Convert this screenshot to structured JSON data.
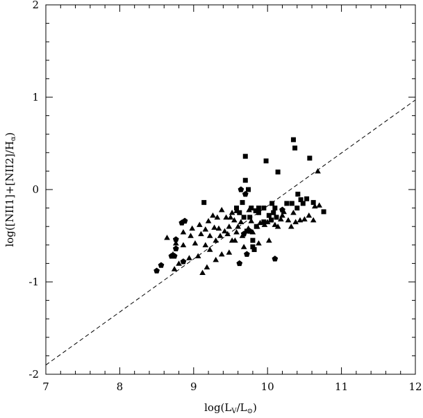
{
  "chart_data": {
    "type": "scatter",
    "title": "",
    "xlabel_main": "log(L",
    "xlabel_sub1": "V",
    "xlabel_mid": "/L",
    "xlabel_sub2": "⊙",
    "xlabel_end": ")",
    "ylabel_main": "log([NII1]+[NII2]/H",
    "ylabel_sub": "α",
    "ylabel_end": ")",
    "xlim": [
      7,
      12
    ],
    "ylim": [
      -2,
      2
    ],
    "x_ticks_major": [
      7,
      8,
      9,
      10,
      11,
      12
    ],
    "x_ticks_minor_step": 0.2,
    "y_ticks_major": [
      -2,
      -1,
      0,
      1,
      2
    ],
    "y_ticks_minor_step": 0.2,
    "x_tick_labels": [
      "7",
      "8",
      "9",
      "10",
      "11",
      "12"
    ],
    "y_tick_labels": [
      "-2",
      "-1",
      "0",
      "1",
      "2"
    ],
    "grid": false,
    "line": {
      "style": "dashed",
      "points": [
        [
          7,
          -1.9
        ],
        [
          12,
          0.97
        ]
      ]
    },
    "series": [
      {
        "marker": "square",
        "points": [
          [
            10.35,
            0.54
          ],
          [
            10.37,
            0.45
          ],
          [
            9.7,
            0.36
          ],
          [
            9.98,
            0.31
          ],
          [
            10.57,
            0.34
          ],
          [
            10.14,
            0.19
          ],
          [
            9.7,
            0.1
          ],
          [
            9.74,
            0.0
          ],
          [
            10.41,
            -0.05
          ],
          [
            9.14,
            -0.14
          ],
          [
            9.66,
            -0.14
          ],
          [
            10.45,
            -0.11
          ],
          [
            10.53,
            -0.1
          ],
          [
            10.33,
            -0.15
          ],
          [
            10.4,
            -0.2
          ],
          [
            10.48,
            -0.15
          ],
          [
            10.26,
            -0.15
          ],
          [
            10.62,
            -0.14
          ],
          [
            9.58,
            -0.2
          ],
          [
            9.78,
            -0.2
          ],
          [
            9.88,
            -0.2
          ],
          [
            9.95,
            -0.2
          ],
          [
            10.06,
            -0.15
          ],
          [
            10.1,
            -0.2
          ],
          [
            9.62,
            -0.25
          ],
          [
            9.84,
            -0.23
          ],
          [
            10.02,
            -0.28
          ],
          [
            10.05,
            -0.33
          ],
          [
            9.68,
            -0.3
          ],
          [
            9.76,
            -0.3
          ],
          [
            10.76,
            -0.24
          ],
          [
            9.85,
            -0.4
          ],
          [
            9.95,
            -0.35
          ],
          [
            10.12,
            -0.3
          ],
          [
            9.8,
            -0.55
          ],
          [
            9.8,
            -0.62
          ],
          [
            9.82,
            -0.65
          ],
          [
            9.72,
            -0.45
          ],
          [
            9.88,
            -0.25
          ],
          [
            10.08,
            -0.25
          ]
        ]
      },
      {
        "marker": "triangle",
        "points": [
          [
            10.68,
            0.2
          ],
          [
            9.38,
            -0.22
          ],
          [
            9.52,
            -0.25
          ],
          [
            9.58,
            -0.23
          ],
          [
            9.75,
            -0.22
          ],
          [
            10.2,
            -0.28
          ],
          [
            10.22,
            -0.24
          ],
          [
            10.35,
            -0.25
          ],
          [
            9.26,
            -0.28
          ],
          [
            9.32,
            -0.3
          ],
          [
            9.44,
            -0.3
          ],
          [
            9.5,
            -0.3
          ],
          [
            9.55,
            -0.33
          ],
          [
            9.2,
            -0.34
          ],
          [
            9.64,
            -0.35
          ],
          [
            9.78,
            -0.34
          ],
          [
            9.9,
            -0.36
          ],
          [
            10.0,
            -0.35
          ],
          [
            10.18,
            -0.32
          ],
          [
            10.28,
            -0.33
          ],
          [
            10.38,
            -0.35
          ],
          [
            10.44,
            -0.33
          ],
          [
            10.5,
            -0.32
          ],
          [
            10.56,
            -0.28
          ],
          [
            10.64,
            -0.18
          ],
          [
            10.7,
            -0.17
          ],
          [
            10.14,
            -0.4
          ],
          [
            10.32,
            -0.4
          ],
          [
            10.62,
            -0.33
          ],
          [
            9.08,
            -0.38
          ],
          [
            8.98,
            -0.42
          ],
          [
            9.16,
            -0.43
          ],
          [
            9.28,
            -0.41
          ],
          [
            9.34,
            -0.42
          ],
          [
            9.48,
            -0.4
          ],
          [
            9.6,
            -0.4
          ],
          [
            9.74,
            -0.42
          ],
          [
            9.86,
            -0.4
          ],
          [
            9.96,
            -0.38
          ],
          [
            8.86,
            -0.46
          ],
          [
            8.96,
            -0.5
          ],
          [
            9.1,
            -0.48
          ],
          [
            9.22,
            -0.5
          ],
          [
            9.36,
            -0.5
          ],
          [
            9.46,
            -0.48
          ],
          [
            9.58,
            -0.46
          ],
          [
            9.66,
            -0.5
          ],
          [
            8.76,
            -0.58
          ],
          [
            8.86,
            -0.6
          ],
          [
            9.02,
            -0.58
          ],
          [
            9.16,
            -0.6
          ],
          [
            9.3,
            -0.55
          ],
          [
            9.52,
            -0.55
          ],
          [
            8.64,
            -0.52
          ],
          [
            8.72,
            -0.7
          ],
          [
            9.22,
            -0.65
          ],
          [
            9.38,
            -0.7
          ],
          [
            9.48,
            -0.68
          ],
          [
            9.68,
            -0.62
          ],
          [
            9.88,
            -0.58
          ],
          [
            10.02,
            -0.55
          ],
          [
            8.8,
            -0.8
          ],
          [
            8.94,
            -0.74
          ],
          [
            9.06,
            -0.72
          ],
          [
            9.18,
            -0.84
          ],
          [
            9.3,
            -0.76
          ],
          [
            8.74,
            -0.86
          ],
          [
            9.12,
            -0.9
          ],
          [
            9.56,
            -0.55
          ],
          [
            9.8,
            -0.46
          ],
          [
            10.1,
            -0.38
          ],
          [
            9.42,
            -0.45
          ]
        ]
      },
      {
        "marker": "pentagon",
        "points": [
          [
            9.64,
            0.0
          ],
          [
            9.7,
            -0.05
          ],
          [
            10.2,
            -0.22
          ],
          [
            8.88,
            -0.34
          ],
          [
            8.84,
            -0.36
          ],
          [
            8.76,
            -0.54
          ],
          [
            8.76,
            -0.64
          ],
          [
            8.74,
            -0.72
          ],
          [
            8.7,
            -0.72
          ],
          [
            8.86,
            -0.78
          ],
          [
            8.56,
            -0.82
          ],
          [
            8.5,
            -0.88
          ],
          [
            9.62,
            -0.8
          ],
          [
            9.72,
            -0.7
          ],
          [
            10.1,
            -0.75
          ],
          [
            9.68,
            -0.48
          ],
          [
            9.76,
            -0.45
          ]
        ]
      }
    ]
  }
}
